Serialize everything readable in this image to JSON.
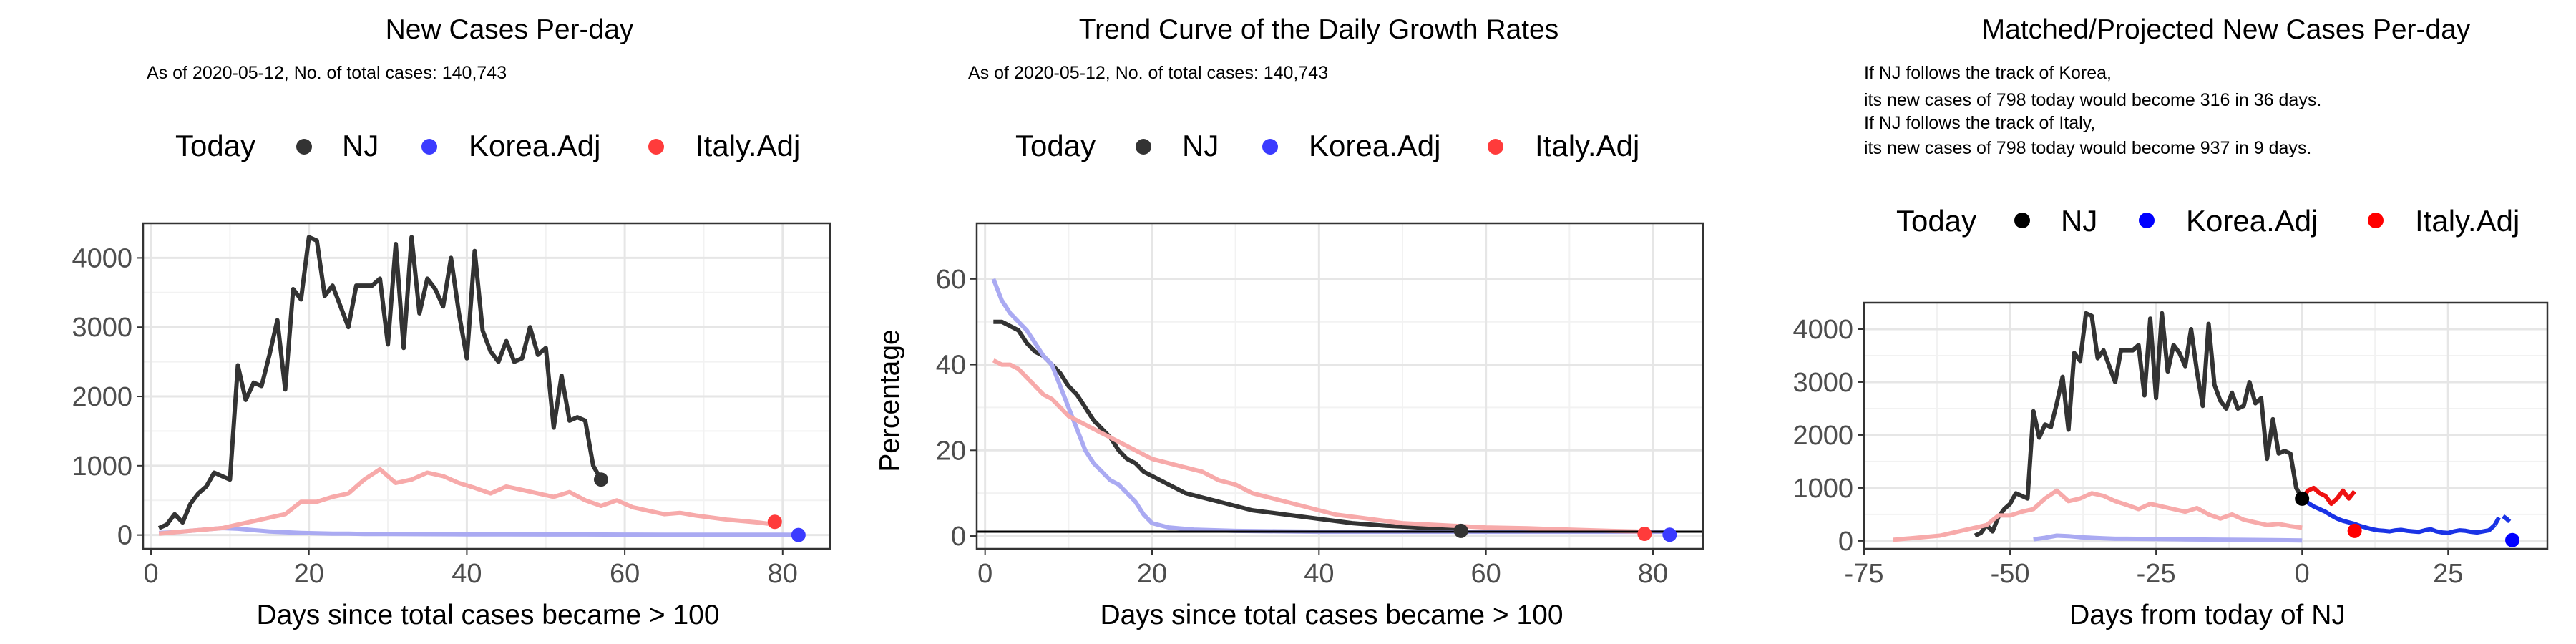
{
  "legend": {
    "title": "Today",
    "items": [
      {
        "label": "NJ",
        "color": "#333333"
      },
      {
        "label": "Korea.Adj",
        "color": "#3b3bff"
      },
      {
        "label": "Italy.Adj",
        "color": "#ff3b3b"
      }
    ]
  },
  "legend3": {
    "title": "Today",
    "items": [
      {
        "label": "NJ",
        "color": "#000000"
      },
      {
        "label": "Korea.Adj",
        "color": "#0000ff"
      },
      {
        "label": "Italy.Adj",
        "color": "#ff0000"
      }
    ]
  },
  "chart_data": [
    {
      "type": "line",
      "title": "New Cases Per-day",
      "subtitle": "As of 2020-05-12, No. of total cases: 140,743",
      "xlabel": "Days since total cases became > 100",
      "ylabel": "",
      "xlim": [
        -1,
        86
      ],
      "ylim": [
        -200,
        4500
      ],
      "x_ticks": [
        0,
        20,
        40,
        60,
        80
      ],
      "y_ticks": [
        0,
        1000,
        2000,
        3000,
        4000
      ],
      "x_tick_labels": [
        "0",
        "20",
        "40",
        "60",
        "80"
      ],
      "y_tick_labels": [
        "0",
        "1000",
        "2000",
        "3000",
        "4000"
      ],
      "grid": true,
      "legend_position": "top",
      "series": [
        {
          "name": "NJ",
          "color": "#333333",
          "x": [
            1,
            2,
            3,
            4,
            5,
            6,
            7,
            8,
            9,
            10,
            11,
            12,
            13,
            14,
            15,
            16,
            17,
            18,
            19,
            20,
            21,
            22,
            23,
            24,
            25,
            26,
            27,
            28,
            29,
            30,
            31,
            32,
            33,
            34,
            35,
            36,
            37,
            38,
            39,
            40,
            41,
            42,
            43,
            44,
            45,
            46,
            47,
            48,
            49,
            50,
            51,
            52,
            53,
            54,
            55,
            56,
            57
          ],
          "y": [
            100,
            150,
            300,
            180,
            450,
            600,
            700,
            900,
            850,
            800,
            2450,
            1950,
            2200,
            2150,
            2600,
            3100,
            2100,
            3550,
            3400,
            4300,
            4250,
            3450,
            3600,
            3300,
            3000,
            3600,
            3600,
            3600,
            3700,
            2750,
            4200,
            2700,
            4300,
            3200,
            3700,
            3550,
            3300,
            4000,
            3200,
            2550,
            4100,
            2950,
            2650,
            2500,
            2800,
            2500,
            2550,
            3000,
            2600,
            2700,
            1550,
            2300,
            1650,
            1700,
            1650,
            1000,
            800
          ]
        },
        {
          "name": "Korea.Adj",
          "color": "#aaaaf2",
          "x": [
            1,
            3,
            5,
            7,
            9,
            11,
            13,
            15,
            17,
            19,
            21,
            23,
            25,
            27,
            30,
            35,
            40,
            45,
            50,
            55,
            60,
            65,
            70,
            75,
            80,
            82
          ],
          "y": [
            30,
            40,
            60,
            80,
            100,
            90,
            70,
            50,
            40,
            30,
            25,
            20,
            20,
            15,
            15,
            12,
            10,
            10,
            8,
            8,
            6,
            5,
            5,
            4,
            3,
            2
          ]
        },
        {
          "name": "Italy.Adj",
          "color": "#f7aaaa",
          "x": [
            1,
            3,
            5,
            7,
            9,
            11,
            13,
            15,
            17,
            19,
            21,
            23,
            25,
            27,
            29,
            31,
            33,
            35,
            37,
            39,
            41,
            43,
            45,
            47,
            49,
            51,
            53,
            55,
            57,
            59,
            61,
            63,
            65,
            67,
            69,
            71,
            73,
            75,
            77,
            79
          ],
          "y": [
            20,
            40,
            60,
            80,
            100,
            150,
            200,
            250,
            300,
            480,
            480,
            550,
            600,
            800,
            950,
            750,
            800,
            900,
            850,
            750,
            680,
            600,
            700,
            650,
            600,
            550,
            620,
            500,
            420,
            500,
            400,
            350,
            300,
            320,
            280,
            250,
            220,
            200,
            180,
            150
          ]
        }
      ],
      "today_points": [
        {
          "name": "NJ",
          "x": 57,
          "y": 800,
          "color": "#333333"
        },
        {
          "name": "Korea.Adj",
          "x": 82,
          "y": 0,
          "color": "#3b3bff"
        },
        {
          "name": "Italy.Adj",
          "x": 79,
          "y": 190,
          "color": "#ff3b3b"
        }
      ]
    },
    {
      "type": "line",
      "title": "Trend Curve of the Daily Growth Rates",
      "subtitle": "As of 2020-05-12, No. of total cases: 140,743",
      "xlabel": "Days since total cases became > 100",
      "ylabel": "Percentage",
      "xlim": [
        -1,
        86
      ],
      "ylim": [
        -3,
        73
      ],
      "x_ticks": [
        0,
        20,
        40,
        60,
        80
      ],
      "y_ticks": [
        0,
        20,
        40,
        60
      ],
      "x_tick_labels": [
        "0",
        "20",
        "40",
        "60",
        "80"
      ],
      "y_tick_labels": [
        "0",
        "20",
        "40",
        "60"
      ],
      "grid": true,
      "legend_position": "top",
      "hline": 1,
      "series": [
        {
          "name": "NJ",
          "color": "#333333",
          "x": [
            1,
            2,
            3,
            4,
            5,
            6,
            7,
            8,
            9,
            10,
            11,
            12,
            13,
            14,
            15,
            16,
            17,
            18,
            19,
            20,
            21,
            22,
            23,
            24,
            25,
            26,
            28,
            30,
            32,
            34,
            36,
            38,
            40,
            42,
            44,
            46,
            48,
            50,
            52,
            54,
            56,
            57
          ],
          "y": [
            50,
            50,
            49,
            48,
            45,
            43,
            42,
            40,
            38,
            35,
            33,
            30,
            27,
            25,
            23,
            20,
            18,
            17,
            15,
            14,
            13,
            12,
            11,
            10,
            9.5,
            9,
            8,
            7,
            6,
            5.5,
            5,
            4.5,
            4,
            3.5,
            3,
            2.7,
            2.4,
            2.2,
            2,
            1.8,
            1.6,
            1.5
          ]
        },
        {
          "name": "Korea.Adj",
          "color": "#aaaaf2",
          "x": [
            1,
            2,
            3,
            4,
            5,
            6,
            7,
            8,
            9,
            10,
            11,
            12,
            13,
            14,
            15,
            16,
            17,
            18,
            19,
            20,
            22,
            25,
            30,
            35,
            40,
            50,
            60,
            70,
            80,
            82
          ],
          "y": [
            60,
            55,
            52,
            50,
            48,
            45,
            42,
            40,
            35,
            30,
            25,
            20,
            17,
            15,
            13,
            12,
            10,
            8,
            5,
            3,
            2,
            1.5,
            1.2,
            1.1,
            1,
            1,
            1,
            1,
            1,
            1
          ]
        },
        {
          "name": "Italy.Adj",
          "color": "#f7aaaa",
          "x": [
            1,
            2,
            3,
            4,
            5,
            6,
            7,
            8,
            9,
            10,
            11,
            12,
            13,
            14,
            15,
            16,
            18,
            20,
            22,
            24,
            26,
            28,
            30,
            32,
            34,
            36,
            38,
            40,
            42,
            44,
            46,
            48,
            50,
            55,
            60,
            65,
            70,
            75,
            79
          ],
          "y": [
            41,
            40,
            40,
            39,
            37,
            35,
            33,
            32,
            30,
            28,
            27,
            26,
            25,
            24,
            23,
            22,
            20,
            18,
            17,
            16,
            15,
            13,
            12,
            10,
            9,
            8,
            7,
            6,
            5,
            4.5,
            4,
            3.5,
            3,
            2.5,
            2,
            1.8,
            1.5,
            1.2,
            1
          ]
        }
      ],
      "today_points": [
        {
          "name": "NJ",
          "x": 57,
          "y": 1.2,
          "color": "#333333"
        },
        {
          "name": "Korea.Adj",
          "x": 82,
          "y": 0.3,
          "color": "#3b3bff"
        },
        {
          "name": "Italy.Adj",
          "x": 79,
          "y": 0.5,
          "color": "#ff3b3b"
        }
      ]
    },
    {
      "type": "line",
      "title": "Matched/Projected New Cases Per-day",
      "subtitle_lines": [
        "If NJ follows the track of Korea,",
        "its new cases of 798 today would become 316 in 36 days.",
        "If NJ follows the track of Italy,",
        "its new cases of 798 today would become 937 in 9 days."
      ],
      "xlabel": "Days from today of NJ",
      "ylabel": "",
      "xlim": [
        -75,
        42
      ],
      "ylim": [
        -150,
        4500
      ],
      "x_ticks": [
        -75,
        -50,
        -25,
        0,
        25
      ],
      "y_ticks": [
        0,
        1000,
        2000,
        3000,
        4000
      ],
      "x_tick_labels": [
        "-75",
        "-50",
        "-25",
        "0",
        "25"
      ],
      "y_tick_labels": [
        "0",
        "1000",
        "2000",
        "3000",
        "4000"
      ],
      "grid": true,
      "legend_position": "top",
      "series": [
        {
          "name": "NJ",
          "color": "#333333",
          "x": [
            -56,
            -55,
            -54,
            -53,
            -52,
            -51,
            -50,
            -49,
            -48,
            -47,
            -46,
            -45,
            -44,
            -43,
            -42,
            -41,
            -40,
            -39,
            -38,
            -37,
            -36,
            -35,
            -34,
            -33,
            -32,
            -31,
            -30,
            -29,
            -28,
            -27,
            -26,
            -25,
            -24,
            -23,
            -22,
            -21,
            -20,
            -19,
            -18,
            -17,
            -16,
            -15,
            -14,
            -13,
            -12,
            -11,
            -10,
            -9,
            -8,
            -7,
            -6,
            -5,
            -4,
            -3,
            -2,
            -1,
            0
          ],
          "y": [
            100,
            150,
            300,
            180,
            450,
            600,
            700,
            900,
            850,
            800,
            2450,
            1950,
            2200,
            2150,
            2600,
            3100,
            2100,
            3550,
            3400,
            4300,
            4250,
            3450,
            3600,
            3300,
            3000,
            3600,
            3600,
            3600,
            3700,
            2750,
            4200,
            2700,
            4300,
            3200,
            3700,
            3550,
            3300,
            4000,
            3200,
            2550,
            4100,
            2950,
            2650,
            2500,
            2800,
            2500,
            2550,
            3000,
            2600,
            2700,
            1550,
            2300,
            1650,
            1700,
            1650,
            1000,
            800
          ]
        },
        {
          "name": "Korea.Adj",
          "color": "#aaaaf2",
          "x": [
            -46,
            -44,
            -42,
            -40,
            -38,
            -36,
            -34,
            -32,
            -30,
            -25,
            -20,
            -15,
            -10,
            -5,
            0
          ],
          "y": [
            30,
            60,
            100,
            90,
            70,
            60,
            50,
            40,
            40,
            35,
            30,
            25,
            20,
            15,
            10
          ]
        },
        {
          "name": "Italy.Adj",
          "color": "#f7aaaa",
          "x": [
            -70,
            -68,
            -66,
            -64,
            -62,
            -60,
            -58,
            -56,
            -54,
            -52,
            -50,
            -48,
            -46,
            -44,
            -42,
            -40,
            -38,
            -36,
            -34,
            -32,
            -30,
            -28,
            -26,
            -24,
            -22,
            -20,
            -18,
            -16,
            -14,
            -12,
            -10,
            -8,
            -6,
            -4,
            -2,
            0
          ],
          "y": [
            20,
            40,
            60,
            80,
            100,
            150,
            200,
            250,
            300,
            480,
            480,
            550,
            600,
            800,
            950,
            750,
            800,
            900,
            850,
            750,
            680,
            600,
            700,
            650,
            600,
            550,
            620,
            500,
            420,
            500,
            400,
            350,
            300,
            320,
            280,
            250
          ]
        },
        {
          "name": "Korea.Adj projection",
          "color": "#1a33e6",
          "dashed_tail": true,
          "x": [
            0,
            1,
            2,
            3,
            4,
            5,
            6,
            7,
            8,
            9,
            10,
            11,
            12,
            13,
            14,
            15,
            16,
            17,
            18,
            19,
            20,
            21,
            22,
            23,
            24,
            25,
            26,
            27,
            28,
            29,
            30,
            31,
            32,
            33,
            34,
            35,
            36
          ],
          "y": [
            800,
            720,
            650,
            600,
            550,
            480,
            420,
            380,
            350,
            320,
            280,
            250,
            220,
            200,
            190,
            180,
            200,
            210,
            190,
            180,
            170,
            200,
            220,
            180,
            160,
            150,
            180,
            200,
            190,
            170,
            160,
            180,
            200,
            300,
            500,
            420,
            316
          ]
        },
        {
          "name": "Italy.Adj projection",
          "color": "#ee1111",
          "x": [
            0,
            1,
            2,
            3,
            4,
            5,
            6,
            7,
            8,
            9
          ],
          "y": [
            800,
            950,
            1000,
            900,
            850,
            700,
            800,
            950,
            800,
            937
          ]
        }
      ],
      "today_points": [
        {
          "name": "NJ",
          "x": 0,
          "y": 798,
          "color": "#000000"
        },
        {
          "name": "Korea.Adj",
          "x": 36,
          "y": 15,
          "color": "#0000ff"
        },
        {
          "name": "Italy.Adj",
          "x": 9,
          "y": 190,
          "color": "#ff0000"
        }
      ]
    }
  ]
}
